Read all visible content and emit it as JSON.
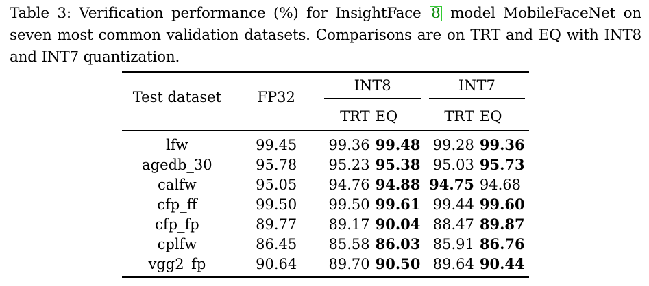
{
  "caption": {
    "prefix": "Table 3: Verification performance (%) for InsightFace ",
    "cite": "8",
    "suffix": " model MobileFaceNet on seven most common validation datasets. Comparisons are on TRT and EQ with INT8 and INT7 quantization."
  },
  "table": {
    "headers": {
      "test_dataset": "Test dataset",
      "fp32": "FP32",
      "group1": "INT8",
      "group2": "INT7",
      "trt": "TRT",
      "eq": "EQ"
    },
    "rows": [
      {
        "name": "lfw",
        "fp32": "99.45",
        "int8_trt": "99.36",
        "int8_eq": "99.48",
        "int7_trt": "99.28",
        "int7_eq": "99.36",
        "bold": [
          "int8_eq",
          "int7_eq"
        ]
      },
      {
        "name": "agedb_30",
        "fp32": "95.78",
        "int8_trt": "95.23",
        "int8_eq": "95.38",
        "int7_trt": "95.03",
        "int7_eq": "95.73",
        "bold": [
          "int8_eq",
          "int7_eq"
        ]
      },
      {
        "name": "calfw",
        "fp32": "95.05",
        "int8_trt": "94.76",
        "int8_eq": "94.88",
        "int7_trt": "94.75",
        "int7_eq": "94.68",
        "bold": [
          "int8_eq",
          "int7_trt"
        ]
      },
      {
        "name": "cfp_ff",
        "fp32": "99.50",
        "int8_trt": "99.50",
        "int8_eq": "99.61",
        "int7_trt": "99.44",
        "int7_eq": "99.60",
        "bold": [
          "int8_eq",
          "int7_eq"
        ]
      },
      {
        "name": "cfp_fp",
        "fp32": "89.77",
        "int8_trt": "89.17",
        "int8_eq": "90.04",
        "int7_trt": "88.47",
        "int7_eq": "89.87",
        "bold": [
          "int8_eq",
          "int7_eq"
        ]
      },
      {
        "name": "cplfw",
        "fp32": "86.45",
        "int8_trt": "85.58",
        "int8_eq": "86.03",
        "int7_trt": "85.91",
        "int7_eq": "86.76",
        "bold": [
          "int8_eq",
          "int7_eq"
        ]
      },
      {
        "name": "vgg2_fp",
        "fp32": "90.64",
        "int8_trt": "89.70",
        "int8_eq": "90.50",
        "int7_trt": "89.64",
        "int7_eq": "90.44",
        "bold": [
          "int8_eq",
          "int7_eq"
        ]
      }
    ]
  },
  "colors": {
    "text": "#000000",
    "citation_text": "#0a8a0a",
    "citation_border": "#33cc33"
  }
}
